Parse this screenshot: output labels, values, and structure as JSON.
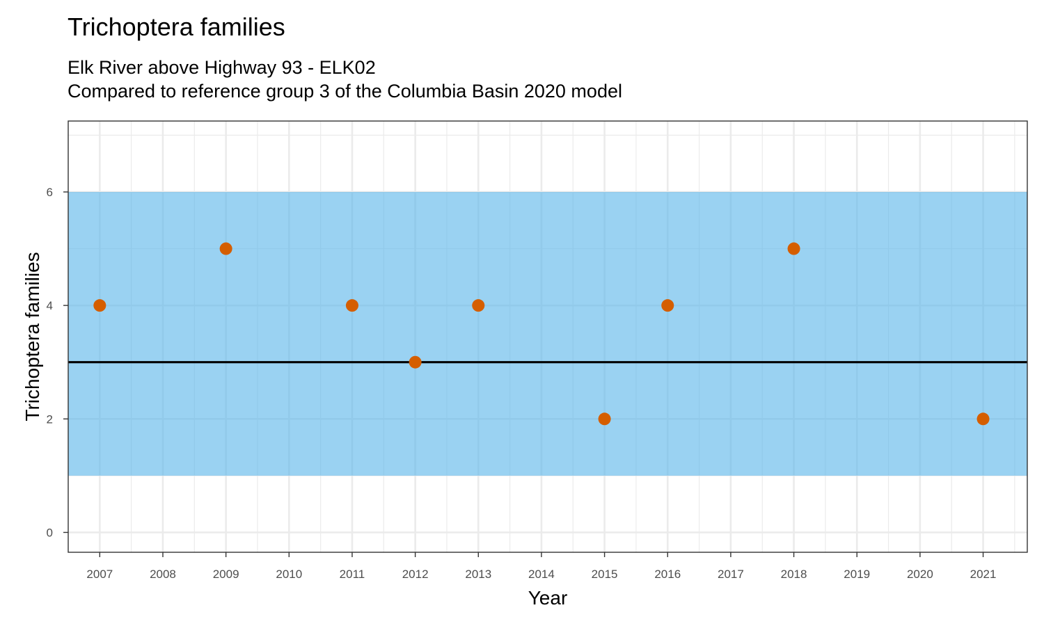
{
  "chart_data": {
    "type": "scatter",
    "title": "Trichoptera families",
    "subtitle": [
      "Elk River above Highway 93 - ELK02",
      "Compared to reference group 3 of the Columbia Basin 2020 model"
    ],
    "xlabel": "Year",
    "ylabel": "Trichoptera families",
    "x_ticks": [
      "2007",
      "2008",
      "2009",
      "2010",
      "2011",
      "2012",
      "2013",
      "2014",
      "2015",
      "2016",
      "2017",
      "2018",
      "2019",
      "2020",
      "2021"
    ],
    "y_ticks": [
      0,
      2,
      4,
      6
    ],
    "xlim": [
      2006.5,
      2021.7
    ],
    "ylim": [
      -0.35,
      7.25
    ],
    "reference_band": {
      "lower": 1,
      "upper": 6,
      "median": 3
    },
    "points": [
      {
        "x": 2007,
        "y": 4
      },
      {
        "x": 2009,
        "y": 5
      },
      {
        "x": 2011,
        "y": 4
      },
      {
        "x": 2012,
        "y": 3
      },
      {
        "x": 2013,
        "y": 4
      },
      {
        "x": 2015,
        "y": 2
      },
      {
        "x": 2016,
        "y": 4
      },
      {
        "x": 2018,
        "y": 5
      },
      {
        "x": 2021,
        "y": 2
      }
    ],
    "grid": true,
    "colors": {
      "band": "#56B4E9",
      "point": "#D55E00",
      "median": "#000000",
      "grid": "#EBEBEB"
    }
  }
}
